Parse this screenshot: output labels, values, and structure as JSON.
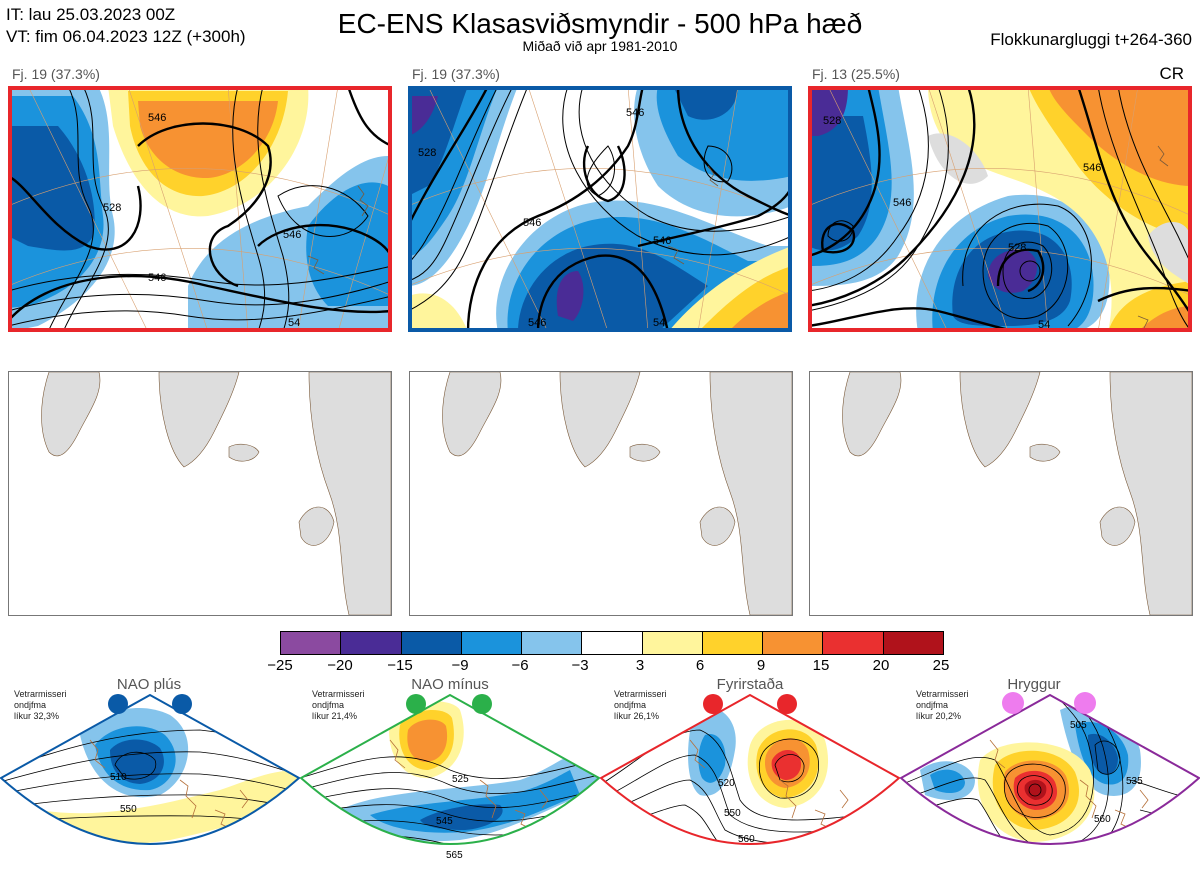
{
  "header": {
    "init_time": "IT: lau 25.03.2023 00Z",
    "valid_time": "VT: fim 06.04.2023 12Z  (+300h)",
    "title": "EC-ENS Klasasviðsmyndir - 500 hPa hæð",
    "subtitle": "Miðað við apr 1981-2010",
    "window": "Flokkunargluggi t+264-360",
    "code": "CR"
  },
  "panels": [
    {
      "label": "Fj. 19 (37.3%)",
      "frame_color": "#e8262b",
      "contours": [
        "546",
        "528",
        "546",
        "546",
        "54"
      ]
    },
    {
      "label": "Fj. 19 (37.3%)",
      "frame_color": "#0a5aa7",
      "contours": [
        "546",
        "528",
        "546",
        "546",
        "54",
        "546"
      ]
    },
    {
      "label": "Fj. 13 (25.5%)",
      "frame_color": "#e8262b",
      "contours": [
        "528",
        "546",
        "528",
        "546",
        "54"
      ]
    }
  ],
  "colorbar": {
    "colors": [
      "#8b4aa0",
      "#4a2c96",
      "#0a5aa7",
      "#1b93dc",
      "#85c4ec",
      "#ffffff",
      "#fff59c",
      "#ffd22b",
      "#f79232",
      "#ea3030",
      "#b0121b"
    ],
    "labels": [
      "−25",
      "−20",
      "−15",
      "−9",
      "−6",
      "−3",
      "3",
      "6",
      "9",
      "15",
      "20",
      "25"
    ]
  },
  "regimes": [
    {
      "name": "NAO plús",
      "info1": "Vetrarmisseri",
      "info2": "ondjfma",
      "info3": "líkur 32,3%",
      "dot_color": "#0a5aa7",
      "frame_color": "#0a5aa7",
      "contours": [
        "510",
        "550"
      ]
    },
    {
      "name": "NAO mínus",
      "info1": "Vetrarmisseri",
      "info2": "ondjfma",
      "info3": "líkur 21,4%",
      "dot_color": "#2bb04a",
      "frame_color": "#2bb04a",
      "contours": [
        "525",
        "545",
        "565"
      ]
    },
    {
      "name": "Fyrirstaða",
      "info1": "Vetrarmisseri",
      "info2": "ondjfma",
      "info3": "líkur 26,1%",
      "dot_color": "#e8262b",
      "frame_color": "#e8262b",
      "contours": [
        "520",
        "550",
        "560"
      ]
    },
    {
      "name": "Hryggur",
      "info1": "Vetrarmisseri",
      "info2": "ondjfma",
      "info3": "líkur 20,2%",
      "dot_color": "#ee7cee",
      "frame_color": "#8a2a9a",
      "contours": [
        "505",
        "535",
        "560"
      ]
    }
  ]
}
